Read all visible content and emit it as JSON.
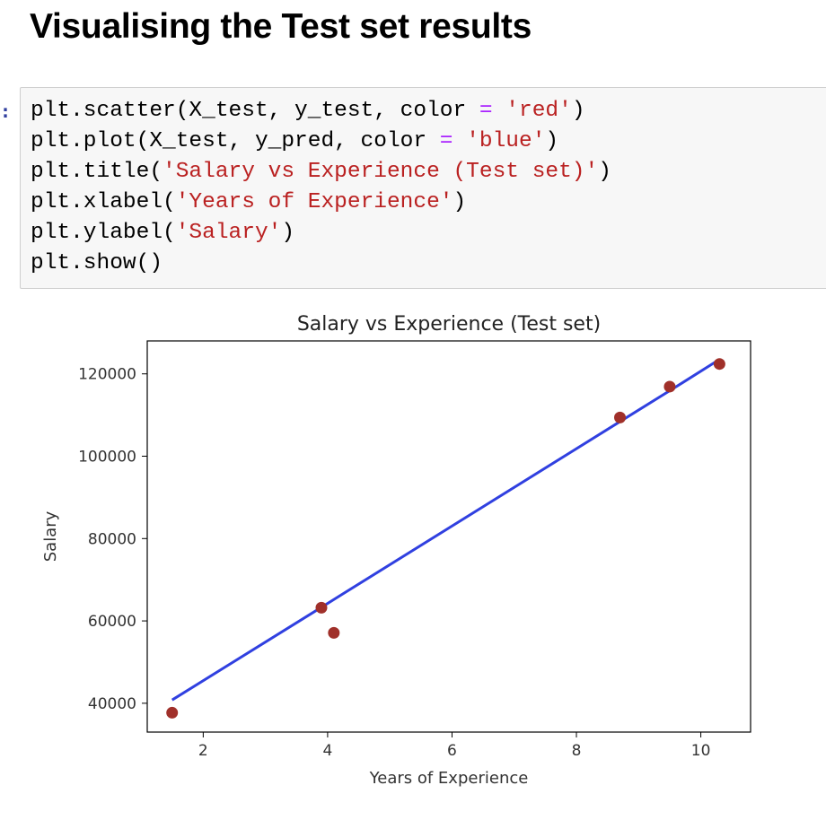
{
  "notebook": {
    "heading": "Visualising the Test set results",
    "prompt": ":",
    "code_lines": [
      [
        {
          "t": "plain",
          "v": "plt.scatter(X_test, y_test, color "
        },
        {
          "t": "op",
          "v": "="
        },
        {
          "t": "plain",
          "v": " "
        },
        {
          "t": "str",
          "v": "'red'"
        },
        {
          "t": "plain",
          "v": ")"
        }
      ],
      [
        {
          "t": "plain",
          "v": "plt.plot(X_test, y_pred, color "
        },
        {
          "t": "op",
          "v": "="
        },
        {
          "t": "plain",
          "v": " "
        },
        {
          "t": "str",
          "v": "'blue'"
        },
        {
          "t": "plain",
          "v": ")"
        }
      ],
      [
        {
          "t": "plain",
          "v": "plt.title("
        },
        {
          "t": "str",
          "v": "'Salary vs Experience (Test set)'"
        },
        {
          "t": "plain",
          "v": ")"
        }
      ],
      [
        {
          "t": "plain",
          "v": "plt.xlabel("
        },
        {
          "t": "str",
          "v": "'Years of Experience'"
        },
        {
          "t": "plain",
          "v": ")"
        }
      ],
      [
        {
          "t": "plain",
          "v": "plt.ylabel("
        },
        {
          "t": "str",
          "v": "'Salary'"
        },
        {
          "t": "plain",
          "v": ")"
        }
      ],
      [
        {
          "t": "plain",
          "v": "plt.show()"
        }
      ]
    ]
  },
  "chart_data": {
    "type": "scatter",
    "title": "Salary vs Experience (Test set)",
    "xlabel": "Years of Experience",
    "ylabel": "Salary",
    "xlim": [
      1.1,
      10.8
    ],
    "ylim": [
      33000,
      128000
    ],
    "xticks": [
      2,
      4,
      6,
      8,
      10
    ],
    "yticks": [
      40000,
      60000,
      80000,
      100000,
      120000
    ],
    "grid": false,
    "scatter": {
      "color": "#a0302a",
      "x": [
        1.5,
        3.9,
        4.1,
        8.7,
        9.5,
        10.3
      ],
      "y": [
        37700,
        63200,
        57100,
        109400,
        116900,
        122400
      ]
    },
    "line": {
      "color": "#3040e0",
      "x": [
        1.5,
        3.9,
        4.1,
        8.7,
        9.5,
        10.3
      ],
      "y": [
        40800,
        63300,
        65200,
        108400,
        115900,
        123500
      ]
    }
  }
}
